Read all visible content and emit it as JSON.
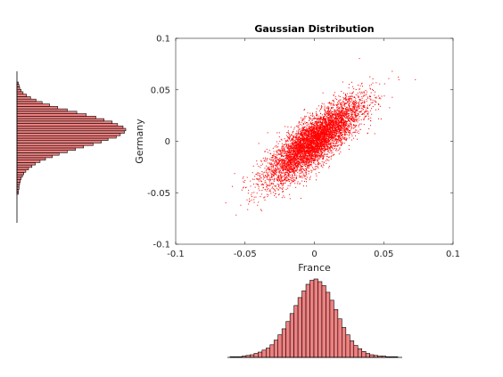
{
  "chart_data": [
    {
      "type": "scatter",
      "title": "Gaussian Distribution",
      "xlabel": "France",
      "ylabel": "Germany",
      "xlim": [
        -0.1,
        0.1
      ],
      "ylim": [
        -0.1,
        0.1
      ],
      "x_ticks": [
        -0.1,
        -0.05,
        0,
        0.05,
        0.1
      ],
      "y_ticks": [
        -0.1,
        -0.05,
        0,
        0.05,
        0.1
      ],
      "x_tick_labels": [
        "-0.1",
        "-0.05",
        "0",
        "0.05",
        "0.1"
      ],
      "y_tick_labels": [
        "-0.1",
        "-0.05",
        "0",
        "0.05",
        "0.1"
      ],
      "grid": false,
      "marker_color": "#ff0000",
      "distribution": {
        "mean": [
          0.0,
          0.0
        ],
        "std": [
          0.017,
          0.02
        ],
        "correlation": 0.82,
        "count": 6000
      }
    },
    {
      "type": "bar",
      "orientation": "horizontal",
      "variable": "Germany",
      "bin_edges_range": [
        -0.08,
        0.065
      ],
      "counts": [
        2,
        2,
        3,
        3,
        4,
        5,
        6,
        8,
        10,
        13,
        17,
        22,
        27,
        34,
        42,
        52,
        62,
        74,
        86,
        98,
        112,
        124,
        134,
        146,
        152,
        158,
        160,
        156,
        148,
        140,
        128,
        116,
        102,
        88,
        74,
        60,
        48,
        37,
        28,
        20,
        14,
        9,
        6,
        4,
        3,
        2
      ],
      "bar_color": "#f08080"
    },
    {
      "type": "bar",
      "orientation": "vertical",
      "variable": "France",
      "bin_edges_range": [
        -0.065,
        0.06
      ],
      "counts": [
        1,
        1,
        1,
        2,
        3,
        4,
        6,
        8,
        11,
        14,
        19,
        26,
        34,
        43,
        54,
        66,
        78,
        90,
        100,
        110,
        116,
        118,
        114,
        108,
        98,
        86,
        72,
        58,
        45,
        34,
        25,
        18,
        13,
        9,
        6,
        4,
        3,
        2,
        2,
        1,
        1,
        1
      ],
      "bar_color": "#f08080"
    }
  ]
}
